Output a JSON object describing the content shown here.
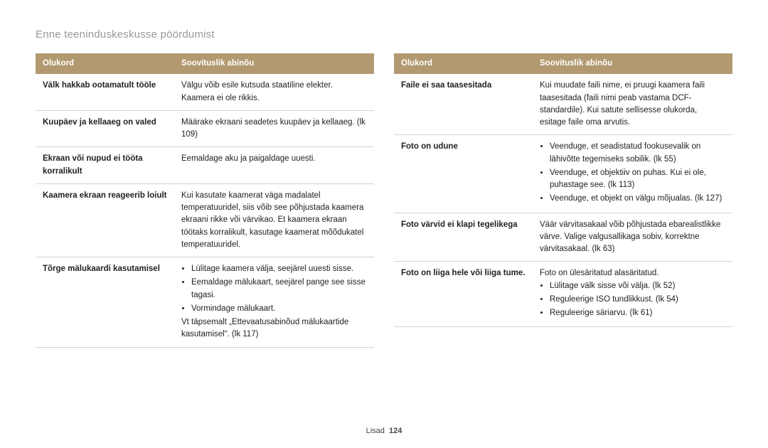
{
  "page": {
    "title": "Enne teeninduskeskusse pöördumist",
    "footer_label": "Lisad",
    "page_number": "124"
  },
  "colors": {
    "header_bg": "#b29970",
    "header_text": "#ffffff",
    "row_border": "#d8d2c6",
    "title_color": "#999999",
    "text_color": "#222222"
  },
  "typography": {
    "title_fontsize": 15,
    "body_fontsize": 11.5,
    "line_height": 1.5
  },
  "table_headers": {
    "col1": "Olukord",
    "col2": "Soovituslik abinõu"
  },
  "left_rows": [
    {
      "situation": "Välk hakkab ootamatult tööle",
      "remedy_text": "Välgu võib esile kutsuda staatiline elekter. Kaamera ei ole rikkis."
    },
    {
      "situation": "Kuupäev ja kellaaeg on valed",
      "remedy_text": "Määrake ekraani seadetes kuupäev ja kellaaeg. (lk 109)"
    },
    {
      "situation": "Ekraan või nupud ei tööta korralikult",
      "remedy_text": "Eemaldage aku ja paigaldage uuesti."
    },
    {
      "situation": "Kaamera ekraan reageerib loiult",
      "remedy_text": "Kui kasutate kaamerat väga madalatel temperatuuridel, siis võib see põhjustada kaamera ekraani rikke või värvikao. Et kaamera ekraan töötaks korralikult, kasutage kaamerat mõõdukatel temperatuuridel."
    },
    {
      "situation": "Tõrge mälukaardi kasutamisel",
      "remedy_bullets": [
        "Lülitage kaamera välja, seejärel uuesti sisse.",
        "Eemaldage mälukaart, seejärel pange see sisse tagasi.",
        "Vormindage mälukaart."
      ],
      "remedy_after": "Vt täpsemalt „Ettevaatusabinõud mälukaartide kasutamisel“. (lk 117)"
    }
  ],
  "right_rows": [
    {
      "situation": "Faile ei saa taasesitada",
      "remedy_text": "Kui muudate faili nime, ei pruugi kaamera faili taasesitada (faili nimi peab vastama DCF-standardile). Kui satute sellisesse olukorda, esitage faile oma arvutis."
    },
    {
      "situation": "Foto on udune",
      "remedy_bullets": [
        "Veenduge, et seadistatud fookusevalik on lähivõtte tegemiseks sobilik. (lk 55)",
        "Veenduge, et objektiiv on puhas. Kui ei ole, puhastage see. (lk 113)",
        "Veenduge, et objekt on välgu mõjualas. (lk 127)"
      ]
    },
    {
      "situation": "Foto värvid ei klapi tegelikega",
      "remedy_text": "Väär värvitasakaal võib põhjustada ebarealistlikke värve. Valige valgusallikaga sobiv, korrektne värvitasakaal. (lk 63)"
    },
    {
      "situation": "Foto on liiga hele või liiga tume.",
      "remedy_before": "Foto on ülesäritatud alasäritatud.",
      "remedy_bullets": [
        "Lülitage välk sisse või välja. (lk 52)",
        "Reguleerige ISO tundlikkust. (lk 54)",
        "Reguleerige säriarvu. (lk 61)"
      ]
    }
  ]
}
